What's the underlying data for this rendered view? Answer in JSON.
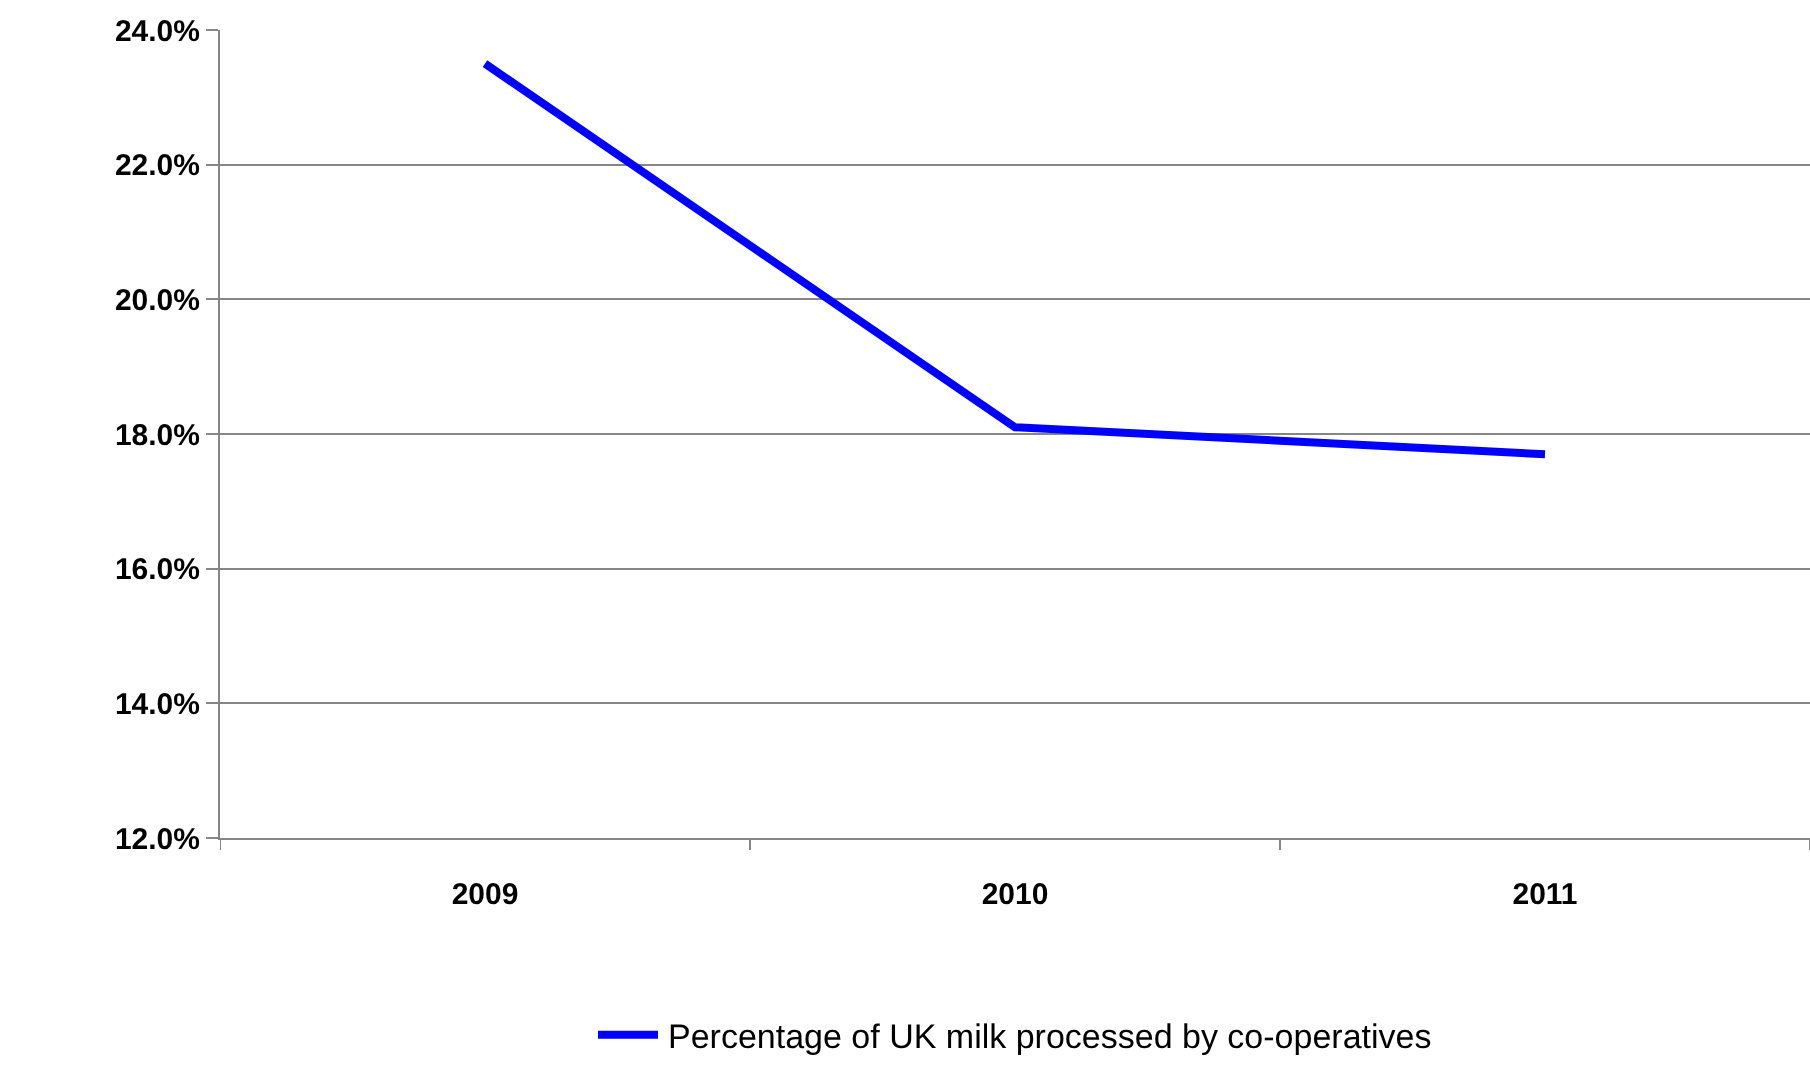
{
  "chart_data": {
    "type": "line",
    "categories": [
      "2009",
      "2010",
      "2011"
    ],
    "series": [
      {
        "name": "Percentage of UK milk processed by co-operatives",
        "color": "#0000ff",
        "values": [
          23.5,
          18.1,
          17.7
        ]
      }
    ],
    "ylim": [
      12,
      24
    ],
    "yticks": [
      {
        "value": 12,
        "label": "12.0%"
      },
      {
        "value": 14,
        "label": "14.0%"
      },
      {
        "value": 16,
        "label": "16.0%"
      },
      {
        "value": 18,
        "label": "18.0%"
      },
      {
        "value": 20,
        "label": "20.0%"
      },
      {
        "value": 22,
        "label": "22.0%"
      },
      {
        "value": 24,
        "label": "24.0%"
      }
    ],
    "grid": "y",
    "legend": "bottom",
    "marker": "none",
    "line_style": "solid"
  }
}
